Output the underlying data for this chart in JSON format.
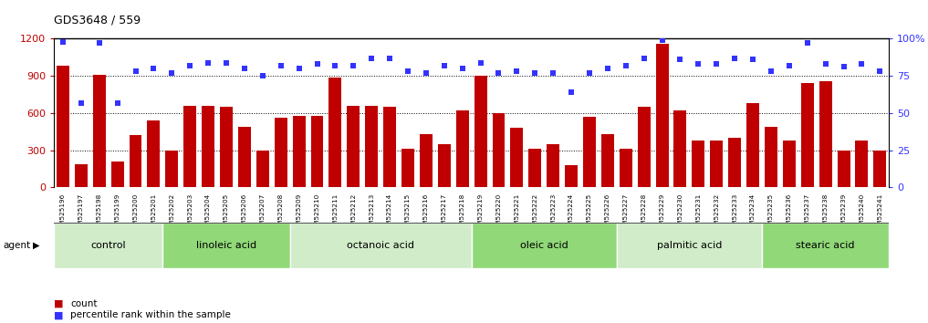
{
  "title": "GDS3648 / 559",
  "categories": [
    "GSM525196",
    "GSM525197",
    "GSM525198",
    "GSM525199",
    "GSM525200",
    "GSM525201",
    "GSM525202",
    "GSM525203",
    "GSM525204",
    "GSM525205",
    "GSM525206",
    "GSM525207",
    "GSM525208",
    "GSM525209",
    "GSM525210",
    "GSM525211",
    "GSM525212",
    "GSM525213",
    "GSM525214",
    "GSM525215",
    "GSM525216",
    "GSM525217",
    "GSM525218",
    "GSM525219",
    "GSM525220",
    "GSM525221",
    "GSM525222",
    "GSM525223",
    "GSM525224",
    "GSM525225",
    "GSM525226",
    "GSM525227",
    "GSM525228",
    "GSM525229",
    "GSM525230",
    "GSM525231",
    "GSM525232",
    "GSM525233",
    "GSM525234",
    "GSM525235",
    "GSM525236",
    "GSM525237",
    "GSM525238",
    "GSM525239",
    "GSM525240",
    "GSM525241"
  ],
  "bar_values": [
    980,
    185,
    910,
    210,
    420,
    540,
    300,
    660,
    660,
    650,
    490,
    300,
    560,
    580,
    580,
    890,
    660,
    660,
    650,
    310,
    430,
    350,
    620,
    900,
    600,
    480,
    310,
    350,
    180,
    570,
    430,
    310,
    650,
    1160,
    620,
    380,
    380,
    400,
    680,
    490,
    380,
    840,
    860,
    300,
    380,
    300
  ],
  "percentile_values": [
    98,
    57,
    97,
    57,
    78,
    80,
    77,
    82,
    84,
    84,
    80,
    75,
    82,
    80,
    83,
    82,
    82,
    87,
    87,
    78,
    77,
    82,
    80,
    84,
    77,
    78,
    77,
    77,
    64,
    77,
    80,
    82,
    87,
    99,
    86,
    83,
    83,
    87,
    86,
    78,
    82,
    97,
    83,
    81,
    83,
    78
  ],
  "groups": [
    {
      "label": "control",
      "start": 0,
      "end": 6,
      "color": "#d0ecc8"
    },
    {
      "label": "linoleic acid",
      "start": 6,
      "end": 13,
      "color": "#90d878"
    },
    {
      "label": "octanoic acid",
      "start": 13,
      "end": 23,
      "color": "#d0ecc8"
    },
    {
      "label": "oleic acid",
      "start": 23,
      "end": 31,
      "color": "#90d878"
    },
    {
      "label": "palmitic acid",
      "start": 31,
      "end": 39,
      "color": "#d0ecc8"
    },
    {
      "label": "stearic acid",
      "start": 39,
      "end": 46,
      "color": "#90d878"
    }
  ],
  "bar_color": "#C00000",
  "dot_color": "#3333FF",
  "ylim_left": [
    0,
    1200
  ],
  "ylim_right": [
    0,
    100
  ],
  "yticks_left": [
    0,
    300,
    600,
    900,
    1200
  ],
  "yticks_right": [
    0,
    25,
    50,
    75,
    100
  ],
  "bg_color": "#f0f0f0",
  "agent_label": "agent"
}
